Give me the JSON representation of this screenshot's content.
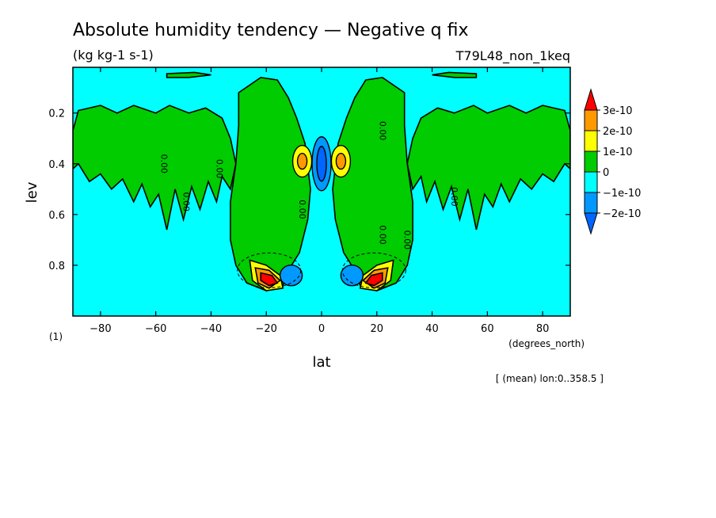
{
  "chart_data": {
    "type": "heatmap",
    "title": "Absolute humidity tendency — Negative q fix",
    "subtitle": "(kg kg-1 s-1)",
    "experiment": "T79L48_non_1keq",
    "xlabel": "lat",
    "xunit": "(degrees_north)",
    "ylabel": "lev",
    "yunit": "(1)",
    "footer": "[ (mean) lon:0..358.5 ]",
    "xlim": [
      -90,
      90
    ],
    "ylim": [
      1.0,
      0.02
    ],
    "y_inverted": true,
    "xticks": [
      -80,
      -60,
      -40,
      -20,
      0,
      20,
      40,
      60,
      80
    ],
    "xtick_labels": [
      "−80",
      "−60",
      "−40",
      "−20",
      "0",
      "20",
      "40",
      "60",
      "80"
    ],
    "yticks": [
      0.2,
      0.4,
      0.6,
      0.8
    ],
    "ytick_labels": [
      "0.2",
      "0.4",
      "0.6",
      "0.8"
    ],
    "contour_labels": [
      {
        "text": "0.00",
        "lat": -58,
        "lev": 0.4
      },
      {
        "text": "0.00",
        "lat": -50,
        "lev": 0.55
      },
      {
        "text": "0.00",
        "lat": -38,
        "lev": 0.42
      },
      {
        "text": "0.00",
        "lat": -8,
        "lev": 0.58
      },
      {
        "text": "0.00",
        "lat": 21,
        "lev": 0.27
      },
      {
        "text": "0.00",
        "lat": 21,
        "lev": 0.68
      },
      {
        "text": "0.00",
        "lat": 30,
        "lev": 0.7
      },
      {
        "text": "0.00",
        "lat": 47,
        "lev": 0.53
      }
    ],
    "colorbar": {
      "levels": [
        "3e-10",
        "2e-10",
        "1e-10",
        "0",
        "−1e-10",
        "−2e-10"
      ],
      "colors": [
        "#ff0000",
        "#ff9900",
        "#ffff00",
        "#00cc00",
        "#00ffff",
        "#0099ff",
        "#0066ff"
      ]
    },
    "features": [
      {
        "kind": "background",
        "value_range": "-1e-10..0",
        "color": "#00ffff"
      },
      {
        "kind": "tropical_branch",
        "lat": -22,
        "lev_range": [
          0.05,
          0.9
        ],
        "value_range": "0..1e-10",
        "color": "#00cc00"
      },
      {
        "kind": "tropical_branch",
        "lat": 22,
        "lev_range": [
          0.05,
          0.9
        ],
        "value_range": "0..1e-10",
        "color": "#00cc00"
      },
      {
        "kind": "maximum",
        "lat": -19,
        "lev": 0.85,
        "value": ">3e-10",
        "color": "#ff0000"
      },
      {
        "kind": "maximum",
        "lat": 19,
        "lev": 0.85,
        "value": ">3e-10",
        "color": "#ff0000"
      },
      {
        "kind": "maximum",
        "lat": -7,
        "lev": 0.39,
        "value": "2e-10..3e-10",
        "color": "#ff9900"
      },
      {
        "kind": "maximum",
        "lat": 7,
        "lev": 0.39,
        "value": "2e-10..3e-10",
        "color": "#ff9900"
      },
      {
        "kind": "minimum",
        "lat": 0,
        "lev": 0.4,
        "value": "<-2e-10",
        "color": "#0066ff"
      },
      {
        "kind": "minimum",
        "lat": -11,
        "lev": 0.84,
        "value": "<-2e-10",
        "color": "#0066ff"
      },
      {
        "kind": "minimum",
        "lat": 11,
        "lev": 0.84,
        "value": "<-2e-10",
        "color": "#0066ff"
      },
      {
        "kind": "extratropical_band",
        "lat_range": [
          -90,
          -30
        ],
        "lev_range": [
          0.18,
          0.55
        ],
        "value_range": "0..1e-10",
        "color": "#00cc00"
      },
      {
        "kind": "extratropical_band",
        "lat_range": [
          30,
          90
        ],
        "lev_range": [
          0.18,
          0.55
        ],
        "value_range": "0..1e-10",
        "color": "#00cc00"
      }
    ]
  }
}
